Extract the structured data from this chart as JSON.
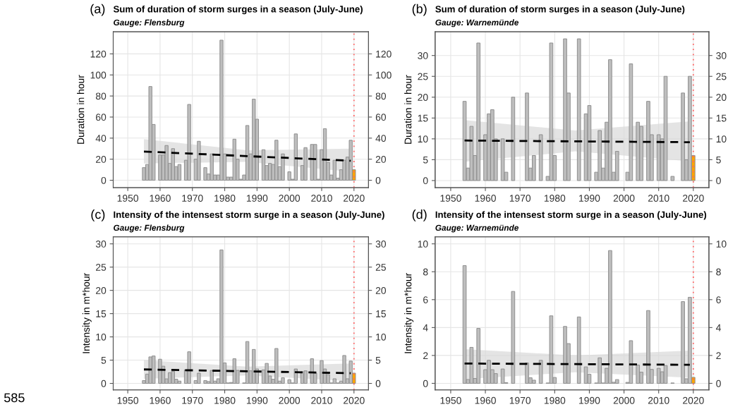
{
  "chart_data": [
    {
      "type": "bar",
      "title": "Sum of duration of storm surges in a season (July-June)",
      "subtitle": "Gauge: Flensburg",
      "ylabel": "Duration in hour",
      "annotations": [
        "(a)"
      ],
      "series": [
        {
          "color": "#bebebe",
          "x": [
            1955,
            1956,
            1957,
            1958,
            1960,
            1961,
            1962,
            1963,
            1964,
            1965,
            1966,
            1968,
            1969,
            1971,
            1972,
            1974,
            1975,
            1976,
            1977,
            1978,
            1979,
            1980,
            1981,
            1982,
            1983,
            1984,
            1985,
            1986,
            1987,
            1988,
            1989,
            1990,
            1992,
            1993,
            1994,
            1995,
            1996,
            1997,
            1998,
            2000,
            2001,
            2002,
            2004,
            2005,
            2007,
            2008,
            2009,
            2010,
            2011,
            2012,
            2013,
            2014,
            2015,
            2016,
            2017,
            2018,
            2019
          ],
          "values": [
            12,
            15,
            89,
            53,
            24,
            24,
            33,
            16,
            30,
            13,
            15,
            19,
            72,
            20,
            37,
            12,
            6,
            25,
            5,
            5,
            133,
            25,
            3,
            3,
            39,
            20,
            1,
            5,
            52,
            25,
            77,
            58,
            29,
            14,
            16,
            15,
            38,
            13,
            25,
            8,
            1,
            44,
            14,
            31,
            34,
            34,
            1,
            29,
            49,
            17,
            5,
            19,
            2,
            10,
            19,
            22,
            38
          ]
        },
        {
          "color": "#ffa500",
          "x": [
            2020
          ],
          "values": [
            10
          ]
        },
        {
          "type": "line",
          "color": "#000000",
          "line_style": "dashed",
          "x": [
            1955,
            1987,
            2019
          ],
          "values": [
            27.3,
            22.9,
            18.5
          ],
          "lower": [
            16,
            17.5,
            8
          ],
          "upper": [
            39,
            28.5,
            30
          ]
        }
      ],
      "xlim": [
        1945.5,
        2024.5
      ],
      "xticks": [
        1950,
        1960,
        1970,
        1980,
        1990,
        2000,
        2010,
        2020
      ],
      "ylim": [
        -7,
        141
      ],
      "yticks": [
        0,
        20,
        40,
        60,
        80,
        100,
        120
      ],
      "y2lim": [
        -7,
        141
      ],
      "y2ticks": [
        0,
        20,
        40,
        60,
        80,
        100,
        120
      ],
      "ref_lines": [
        {
          "axis": "x",
          "value": 2020,
          "color": "#ff6666",
          "line_style": "dotted"
        }
      ],
      "grid": true
    },
    {
      "type": "bar",
      "title": "Sum of duration of storm surges in a season (July-June)",
      "subtitle": "Gauge: Warnemünde",
      "ylabel": "Duration in hour",
      "annotations": [
        "(b)"
      ],
      "series": [
        {
          "color": "#bebebe",
          "x": [
            1954,
            1955,
            1956,
            1957,
            1958,
            1960,
            1961,
            1962,
            1963,
            1965,
            1966,
            1968,
            1972,
            1973,
            1974,
            1976,
            1978,
            1979,
            1980,
            1983,
            1984,
            1987,
            1989,
            1990,
            1992,
            1993,
            1994,
            1995,
            1996,
            1997,
            1998,
            2001,
            2002,
            2004,
            2005,
            2007,
            2008,
            2010,
            2011,
            2012,
            2014,
            2017,
            2018,
            2019
          ],
          "values": [
            19,
            3,
            13,
            6,
            33,
            11,
            16,
            17,
            10,
            10,
            2,
            20,
            21,
            3,
            6,
            11,
            1,
            33,
            6,
            34,
            21,
            34,
            16,
            18,
            2,
            12,
            3,
            14,
            29,
            2,
            7,
            2,
            28,
            14,
            13,
            19,
            11,
            11,
            10,
            25,
            1,
            21,
            5,
            25
          ]
        },
        {
          "color": "#ffa500",
          "x": [
            2020
          ],
          "values": [
            6
          ]
        },
        {
          "type": "line",
          "color": "#000000",
          "line_style": "dashed",
          "x": [
            1954,
            1986,
            2019
          ],
          "values": [
            9.6,
            9.4,
            9.2
          ],
          "lower": [
            4.5,
            7.0,
            4.6
          ],
          "upper": [
            14.5,
            12.0,
            14.2
          ]
        }
      ],
      "xlim": [
        1945.5,
        2024.5
      ],
      "xticks": [
        1950,
        1960,
        1970,
        1980,
        1990,
        2000,
        2010,
        2020
      ],
      "ylim": [
        -1.7,
        35.7
      ],
      "yticks": [
        0,
        5,
        10,
        15,
        20,
        25,
        30
      ],
      "y2lim": [
        -1.7,
        35.7
      ],
      "y2ticks": [
        0,
        5,
        10,
        15,
        20,
        25,
        30
      ],
      "ref_lines": [
        {
          "axis": "x",
          "value": 2020,
          "color": "#ff6666",
          "line_style": "dotted"
        }
      ],
      "grid": true
    },
    {
      "type": "bar",
      "title": "Intensity of the intensest storm surge in a season (July-June)",
      "subtitle": "Gauge: Flensburg",
      "ylabel": "Intensity in m*hour",
      "annotations": [
        "(c)",
        "585"
      ],
      "series": [
        {
          "color": "#bebebe",
          "x": [
            1955,
            1956,
            1957,
            1958,
            1960,
            1961,
            1962,
            1963,
            1964,
            1965,
            1966,
            1968,
            1969,
            1971,
            1972,
            1974,
            1975,
            1976,
            1977,
            1978,
            1979,
            1980,
            1981,
            1982,
            1983,
            1984,
            1986,
            1987,
            1988,
            1989,
            1990,
            1992,
            1993,
            1994,
            1995,
            1996,
            1997,
            1998,
            2000,
            2001,
            2002,
            2004,
            2005,
            2007,
            2008,
            2010,
            2011,
            2012,
            2013,
            2014,
            2015,
            2016,
            2017,
            2018,
            2019
          ],
          "values": [
            0.6,
            2.0,
            5.7,
            5.9,
            5.2,
            3.7,
            1.0,
            2.3,
            2.6,
            0.9,
            0.5,
            2.9,
            6.8,
            0.6,
            2.2,
            0.6,
            0.4,
            2.8,
            0.5,
            1.0,
            28.7,
            4.4,
            0.1,
            0.2,
            5.3,
            2.8,
            0.1,
            9.0,
            2.7,
            7.3,
            3.1,
            2.9,
            4.3,
            1.6,
            0.9,
            7.5,
            0.5,
            1.2,
            0.8,
            0.1,
            3.1,
            2.5,
            2.7,
            5.3,
            2.2,
            4.9,
            3.1,
            1.9,
            0.1,
            1.0,
            0.1,
            0.5,
            6.0,
            1.0,
            4.8
          ]
        },
        {
          "color": "#ffa500",
          "x": [
            2020
          ],
          "values": [
            2.2
          ]
        },
        {
          "type": "line",
          "color": "#000000",
          "line_style": "dashed",
          "x": [
            1955,
            1987,
            2019
          ],
          "values": [
            3.0,
            2.6,
            2.2
          ],
          "lower": [
            1.0,
            1.7,
            0.5
          ],
          "upper": [
            5.0,
            3.6,
            4.3
          ]
        }
      ],
      "xlim": [
        1945.5,
        2024.5
      ],
      "xticks": [
        1950,
        1960,
        1970,
        1980,
        1990,
        2000,
        2010,
        2020
      ],
      "ylim": [
        -1.4,
        31.5
      ],
      "yticks": [
        0,
        5,
        10,
        15,
        20,
        25,
        30
      ],
      "y2lim": [
        -1.4,
        31.5
      ],
      "y2ticks": [
        0,
        5,
        10,
        15,
        20,
        25,
        30
      ],
      "ref_lines": [
        {
          "axis": "x",
          "value": 2020,
          "color": "#ff6666",
          "line_style": "dotted"
        }
      ],
      "grid": true
    },
    {
      "type": "bar",
      "title": "Intensity of the intensest storm surge in a season (July-June)",
      "subtitle": "Gauge: Warnemünde",
      "ylabel": "Intensity in m*hour",
      "annotations": [
        "(d)"
      ],
      "series": [
        {
          "color": "#bebebe",
          "x": [
            1954,
            1955,
            1956,
            1957,
            1958,
            1960,
            1961,
            1962,
            1963,
            1965,
            1966,
            1968,
            1972,
            1973,
            1974,
            1976,
            1978,
            1979,
            1980,
            1983,
            1984,
            1987,
            1989,
            1990,
            1992,
            1993,
            1994,
            1995,
            1996,
            1997,
            1998,
            2001,
            2002,
            2004,
            2005,
            2007,
            2008,
            2010,
            2011,
            2012,
            2014,
            2017,
            2018,
            2019
          ],
          "values": [
            8.44,
            0.28,
            2.58,
            0.35,
            3.94,
            0.98,
            1.65,
            0.98,
            0.7,
            1.03,
            0.05,
            6.59,
            1.46,
            0.4,
            0.23,
            1.65,
            0.03,
            4.84,
            0.42,
            4.08,
            2.85,
            4.76,
            1.18,
            0.65,
            0.03,
            1.83,
            0.03,
            1.08,
            9.52,
            0.08,
            0.27,
            0.07,
            3.06,
            1.31,
            0.8,
            5.22,
            1.0,
            1.08,
            0.83,
            1.28,
            0.03,
            5.86,
            0.33,
            6.17
          ]
        },
        {
          "color": "#ffa500",
          "x": [
            2020
          ],
          "values": [
            0.43
          ]
        },
        {
          "type": "line",
          "color": "#000000",
          "line_style": "dashed",
          "x": [
            1954,
            1986,
            2019
          ],
          "values": [
            1.42,
            1.38,
            1.33
          ],
          "lower": [
            0.3,
            0.8,
            0.4
          ],
          "upper": [
            2.45,
            2.0,
            2.35
          ]
        }
      ],
      "xlim": [
        1945.5,
        2024.5
      ],
      "xticks": [
        1950,
        1960,
        1970,
        1980,
        1990,
        2000,
        2010,
        2020
      ],
      "ylim": [
        -0.47,
        10.5
      ],
      "yticks": [
        0,
        2,
        4,
        6,
        8,
        10
      ],
      "y2lim": [
        -0.47,
        10.5
      ],
      "y2ticks": [
        0,
        2,
        4,
        6,
        8,
        10
      ],
      "ref_lines": [
        {
          "axis": "x",
          "value": 2020,
          "color": "#ff6666",
          "line_style": "dotted"
        }
      ],
      "grid": true
    }
  ]
}
